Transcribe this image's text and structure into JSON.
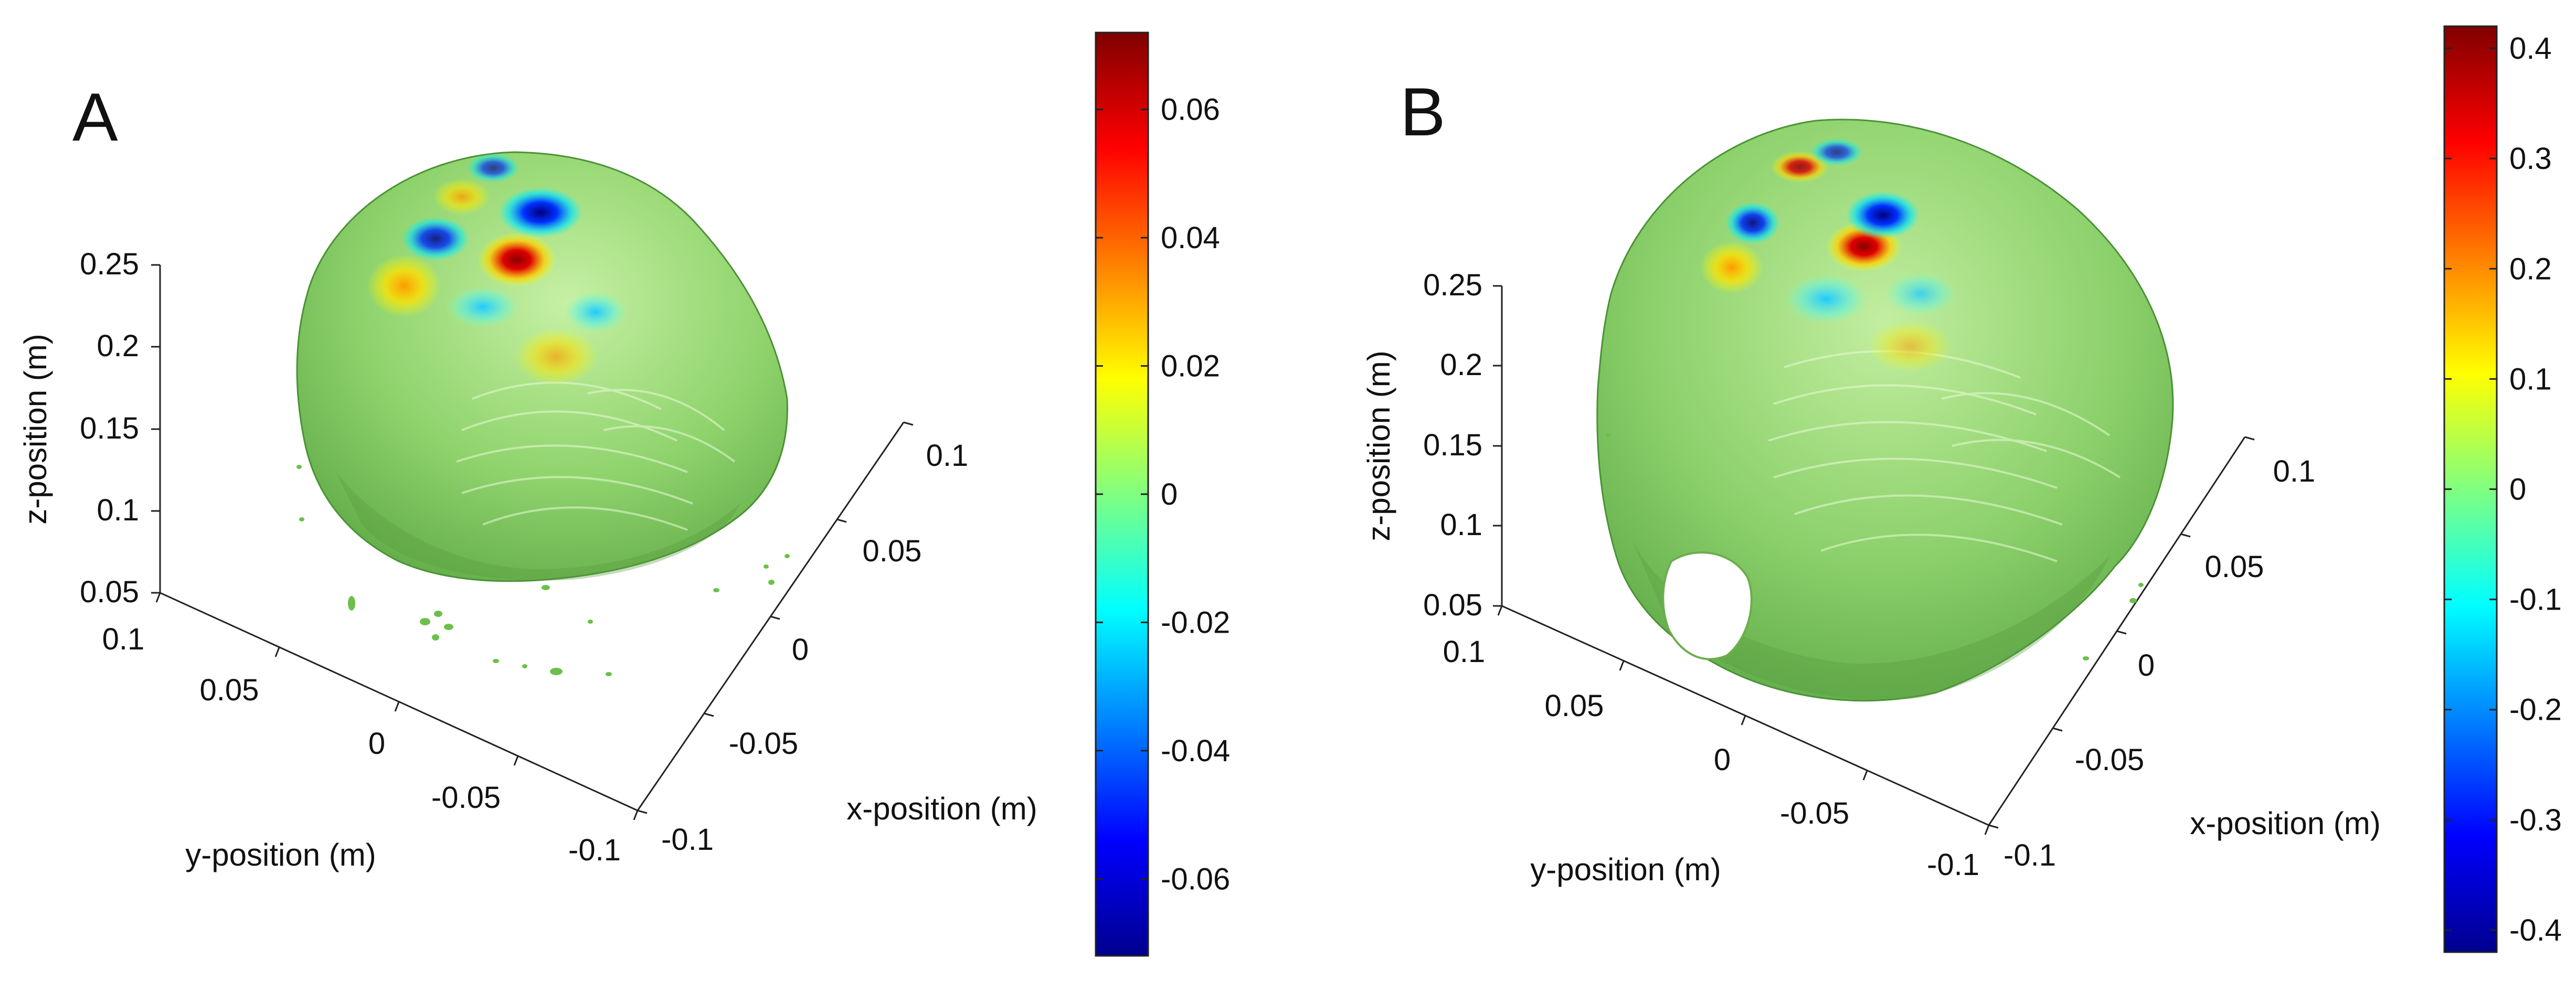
{
  "chart_data": [
    {
      "type": "surface3d",
      "panel_label": "A",
      "title": "",
      "xlabel": "x-position (m)",
      "ylabel": "y-position (m)",
      "zlabel": "z-position (m)",
      "x_ticks": [
        "-0.1",
        "-0.05",
        "0",
        "0.05",
        "0.1"
      ],
      "y_ticks": [
        "0.1",
        "0.05",
        "0",
        "-0.05",
        "-0.1"
      ],
      "z_ticks": [
        "0.05",
        "0.1",
        "0.15",
        "0.2",
        "0.25"
      ],
      "xlim": [
        -0.1,
        0.1
      ],
      "ylim": [
        -0.1,
        0.1
      ],
      "zlim": [
        0.05,
        0.25
      ],
      "colorbar": {
        "colormap": "jet",
        "min": -0.072,
        "max": 0.072,
        "ticks": [
          "0.06",
          "0.04",
          "0.02",
          "0",
          "-0.02",
          "-0.04",
          "-0.06"
        ],
        "tick_values": [
          0.06,
          0.04,
          0.02,
          0,
          -0.02,
          -0.04,
          -0.06
        ]
      }
    },
    {
      "type": "surface3d",
      "panel_label": "B",
      "title": "",
      "xlabel": "x-position (m)",
      "ylabel": "y-position (m)",
      "zlabel": "z-position (m)",
      "x_ticks": [
        "-0.1",
        "-0.05",
        "0",
        "0.05",
        "0.1"
      ],
      "y_ticks": [
        "0.1",
        "0.05",
        "0",
        "-0.05",
        "-0.1"
      ],
      "z_ticks": [
        "0.05",
        "0.1",
        "0.15",
        "0.2",
        "0.25"
      ],
      "xlim": [
        -0.1,
        0.1
      ],
      "ylim": [
        -0.1,
        0.1
      ],
      "zlim": [
        0.05,
        0.25
      ],
      "colorbar": {
        "colormap": "jet",
        "min": -0.42,
        "max": 0.42,
        "ticks": [
          "0.4",
          "0.3",
          "0.2",
          "0.1",
          "0",
          "-0.1",
          "-0.2",
          "-0.3",
          "-0.4"
        ],
        "tick_values": [
          0.4,
          0.3,
          0.2,
          0.1,
          0,
          -0.1,
          -0.2,
          -0.3,
          -0.4
        ]
      }
    }
  ]
}
